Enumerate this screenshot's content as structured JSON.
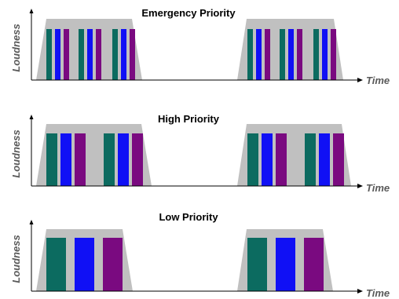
{
  "colors": {
    "envelope": "#c0c0c0",
    "teal": "#0c6b60",
    "blue": "#1010f5",
    "purple": "#7a0a80",
    "axis": "#000000",
    "label": "#5a5a5a"
  },
  "panels": [
    {
      "title": "Emergency Priority",
      "ylabel": "Loudness",
      "xlabel": "Time",
      "bursts": [
        {
          "groups": [
            [
              "teal",
              "blue",
              "purple"
            ],
            [
              "teal",
              "blue",
              "purple"
            ],
            [
              "teal",
              "blue",
              "purple"
            ]
          ]
        },
        {
          "groups": [
            [
              "teal",
              "blue",
              "purple"
            ],
            [
              "teal",
              "blue",
              "purple"
            ],
            [
              "teal",
              "blue",
              "purple"
            ]
          ]
        }
      ]
    },
    {
      "title": "High Priority",
      "ylabel": "Loudness",
      "xlabel": "Time",
      "bursts": [
        {
          "groups": [
            [
              "teal",
              "blue",
              "purple"
            ],
            [
              "teal",
              "blue",
              "purple"
            ]
          ]
        },
        {
          "groups": [
            [
              "teal",
              "blue",
              "purple"
            ],
            [
              "teal",
              "blue",
              "purple"
            ]
          ]
        }
      ]
    },
    {
      "title": "Low Priority",
      "ylabel": "Loudness",
      "xlabel": "Time",
      "bursts": [
        {
          "groups": [
            [
              "teal",
              "blue",
              "purple"
            ]
          ]
        },
        {
          "groups": [
            [
              "teal",
              "blue",
              "purple"
            ]
          ]
        }
      ]
    }
  ]
}
